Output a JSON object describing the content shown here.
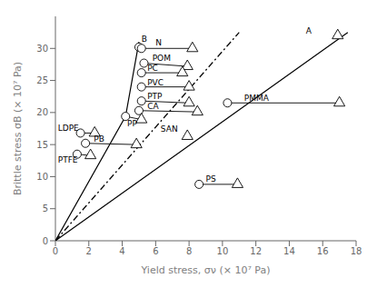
{
  "chart_data": {
    "type": "scatter",
    "xlabel": "Yield stress, σν  (× 10⁷ Pa)",
    "ylabel": "Brittle stress σB  (× 10⁷ Pa)",
    "xlim": [
      0,
      18
    ],
    "ylim": [
      0,
      35
    ],
    "xticks": [
      0,
      2,
      4,
      6,
      8,
      10,
      12,
      14,
      16,
      18
    ],
    "yticks": [
      0,
      5,
      10,
      15,
      20,
      25,
      30
    ],
    "grid": false,
    "color": "#000000",
    "lines": [
      {
        "x": [
          0,
          17.5
        ],
        "y": [
          0,
          32.5
        ],
        "line_style": "solid"
      },
      {
        "x": [
          0,
          11.0
        ],
        "y": [
          0,
          32.5
        ],
        "line_style": "dashdot"
      },
      {
        "x": [
          0,
          4.2,
          5.0
        ],
        "y": [
          0,
          19.4,
          31.0
        ],
        "line_style": "solid"
      }
    ],
    "materials": [
      {
        "name": "B",
        "circle": [
          5.0,
          30.2
        ],
        "triangle": null,
        "label": [
          5.15,
          31.0
        ]
      },
      {
        "name": "N",
        "circle": [
          5.15,
          30.0
        ],
        "triangle": [
          8.2,
          30.0
        ],
        "label": [
          6.0,
          30.5
        ]
      },
      {
        "name": "POM",
        "circle": [
          5.3,
          27.7
        ],
        "triangle": [
          7.9,
          27.2
        ],
        "label": [
          5.8,
          28.0
        ]
      },
      {
        "name": "PC",
        "circle": [
          5.15,
          26.2
        ],
        "triangle": [
          7.6,
          26.2
        ],
        "label": [
          5.5,
          26.5
        ]
      },
      {
        "name": "PVC",
        "circle": [
          5.15,
          24.0
        ],
        "triangle": [
          8.0,
          24.0
        ],
        "label": [
          5.5,
          24.3
        ]
      },
      {
        "name": "PTP",
        "circle": [
          5.15,
          21.8
        ],
        "triangle": [
          8.0,
          21.5
        ],
        "label": [
          5.5,
          22.1
        ]
      },
      {
        "name": "CA",
        "circle": [
          5.0,
          20.3
        ],
        "triangle": [
          8.5,
          20.1
        ],
        "label": [
          5.5,
          20.5
        ]
      },
      {
        "name": "PP",
        "circle": [
          4.2,
          19.4
        ],
        "triangle": [
          5.15,
          18.9
        ],
        "label": [
          4.3,
          17.8
        ]
      },
      {
        "name": "LDPE",
        "circle": [
          1.5,
          16.8
        ],
        "triangle": [
          2.35,
          16.8
        ],
        "label": [
          0.15,
          17.2
        ]
      },
      {
        "name": "PB",
        "circle": [
          1.8,
          15.2
        ],
        "triangle": [
          4.85,
          15.0
        ],
        "label": [
          2.3,
          15.4
        ]
      },
      {
        "name": "PTFE",
        "circle": [
          1.3,
          13.5
        ],
        "triangle": [
          2.1,
          13.3
        ],
        "label": [
          0.15,
          12.2
        ]
      },
      {
        "name": "PMMA",
        "circle": [
          10.3,
          21.5
        ],
        "triangle": [
          17.0,
          21.5
        ],
        "label": [
          11.3,
          21.8
        ]
      },
      {
        "name": "SAN",
        "circle": null,
        "triangle": [
          7.9,
          16.3
        ],
        "label": [
          6.3,
          17.0
        ]
      },
      {
        "name": "PS",
        "circle": [
          8.6,
          8.8
        ],
        "triangle": [
          10.9,
          8.8
        ],
        "label": [
          9.0,
          9.2
        ]
      },
      {
        "name": "A",
        "circle": null,
        "triangle": [
          16.9,
          32.0
        ],
        "label": [
          15.0,
          32.3
        ]
      }
    ]
  }
}
